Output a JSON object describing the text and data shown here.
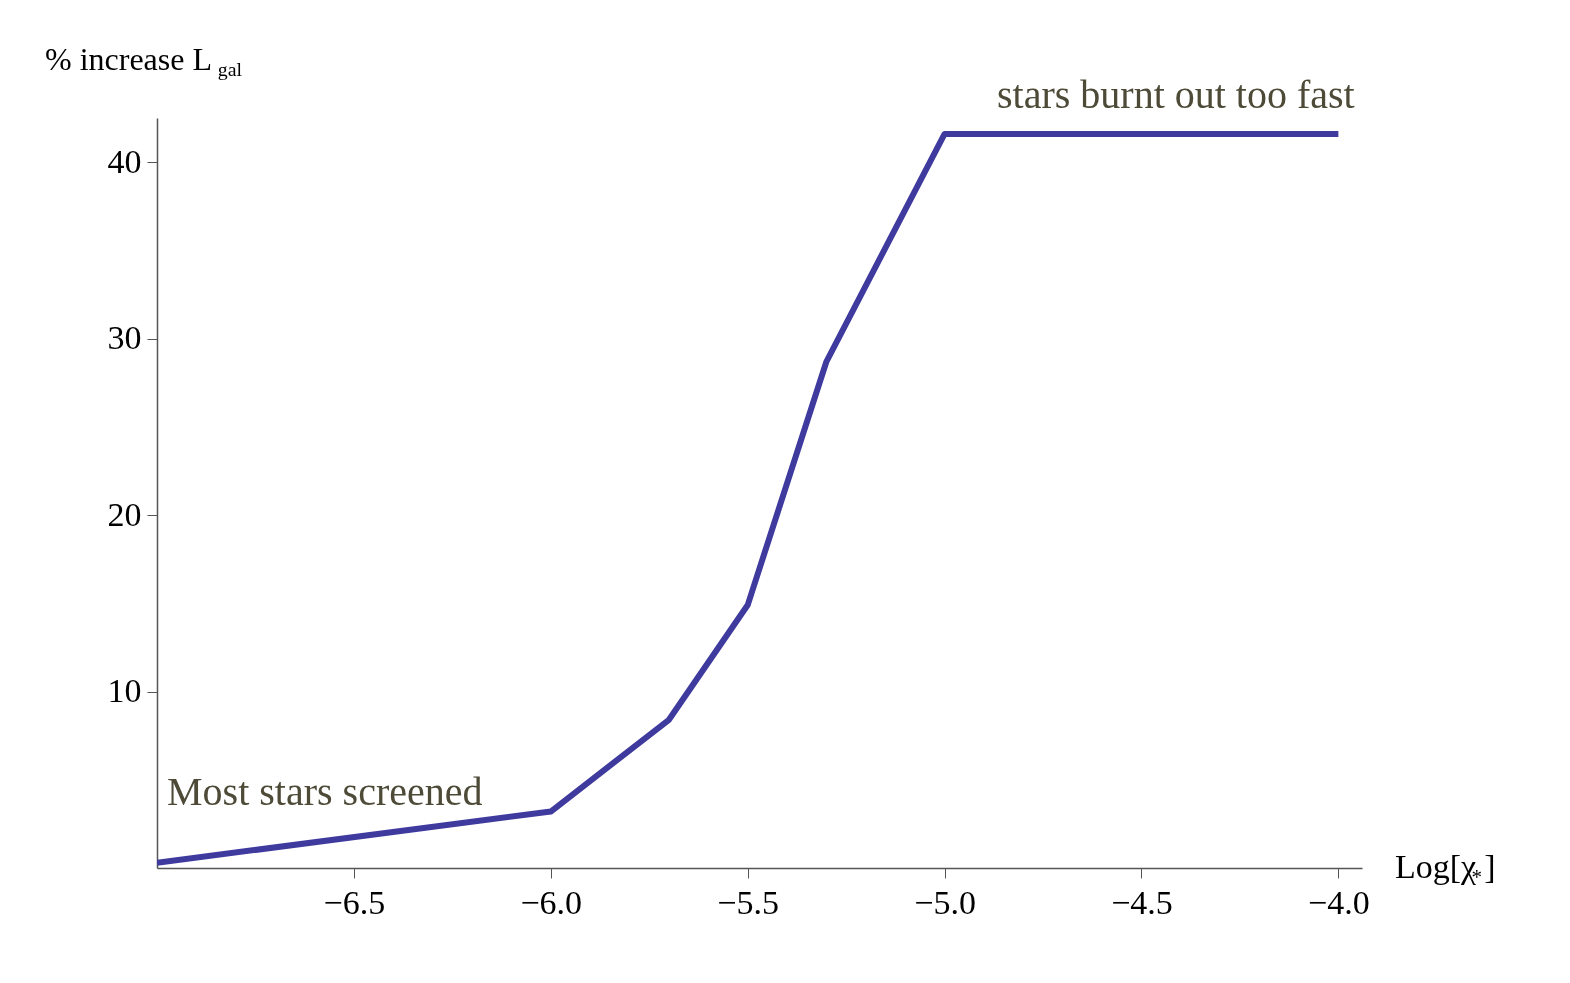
{
  "chart_data": {
    "type": "line",
    "xlabel": "Log[χ$_{*}$]",
    "ylabel": "% increase L$_{gal}$",
    "x": [
      -7.0,
      -6.0,
      -5.7,
      -5.5,
      -5.3,
      -5.0,
      -4.0
    ],
    "series": [
      {
        "color": "#3f3a9e",
        "values": [
          0.3,
          3.2,
          8.4,
          14.9,
          28.7,
          41.6,
          41.6
        ]
      }
    ],
    "xlim": [
      -7.0,
      -3.94
    ],
    "ylim": [
      0,
      42.5
    ],
    "xticks": [
      {
        "value": -6.5,
        "label": "−6.5"
      },
      {
        "value": -6.0,
        "label": "−6.0"
      },
      {
        "value": -5.5,
        "label": "−5.5"
      },
      {
        "value": -5.0,
        "label": "−5.0"
      },
      {
        "value": -4.5,
        "label": "−4.5"
      },
      {
        "value": -4.0,
        "label": "−4.0"
      }
    ],
    "yticks": [
      10,
      20,
      30,
      40
    ],
    "grid": false,
    "line_style": "solid",
    "marker": "none",
    "annotations": [
      "Most stars screened",
      "stars burnt out too fast"
    ]
  }
}
